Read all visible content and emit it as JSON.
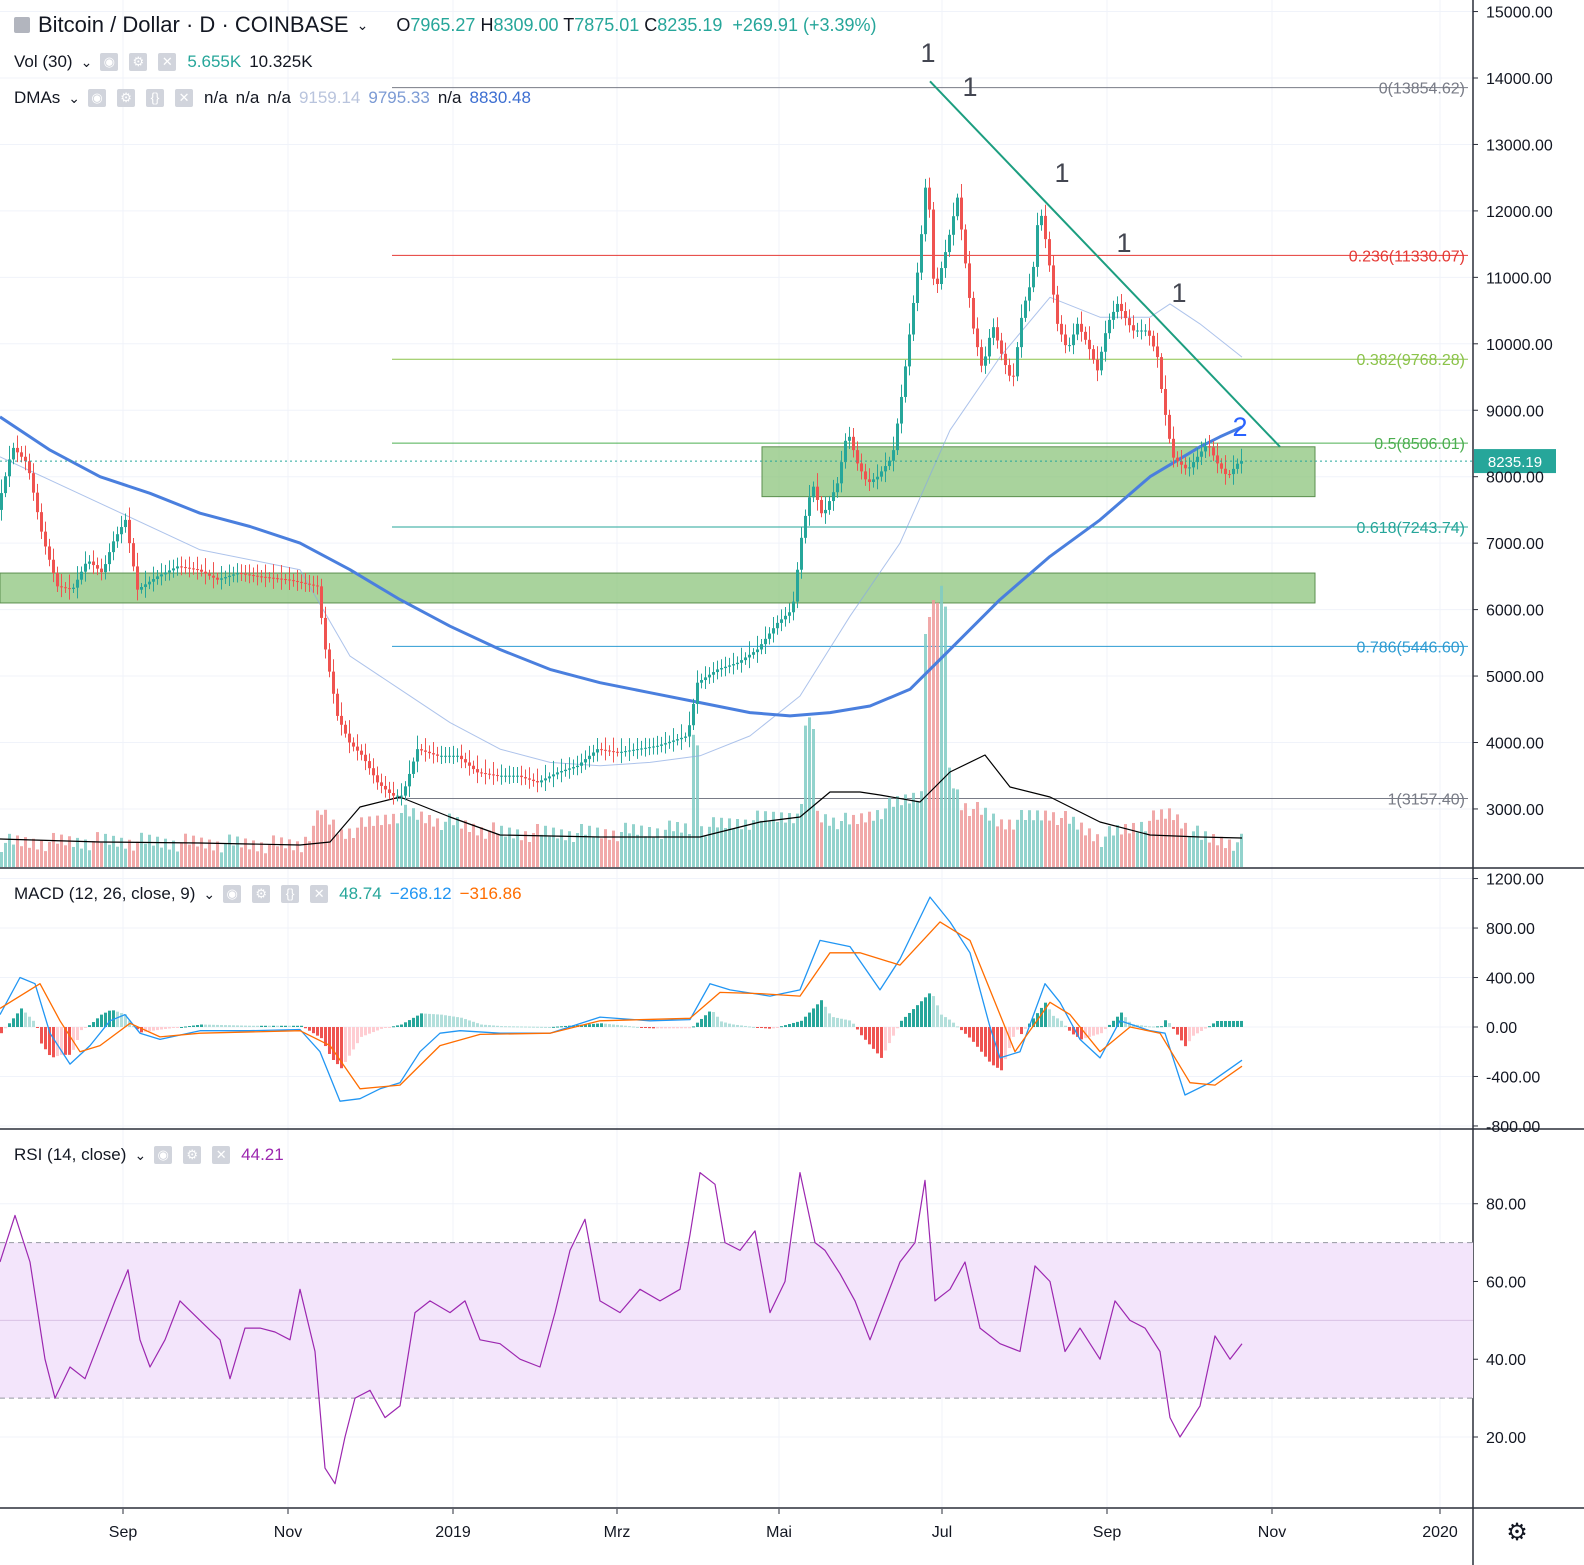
{
  "header": {
    "symbol": "Bitcoin / Dollar",
    "interval": "D",
    "exchange": "COINBASE",
    "open_label": "O",
    "open": "7965.27",
    "high_label": "H",
    "high": "8309.00",
    "low_label": "T",
    "low": "7875.01",
    "close_label": "C",
    "close": "8235.19",
    "change": "+269.91 (+3.39%)",
    "sep": "·"
  },
  "vol_legend": {
    "title": "Vol (30)",
    "v1": "5.655K",
    "v2": "10.325K"
  },
  "dma_legend": {
    "title": "DMAs",
    "values": [
      "n/a",
      "n/a",
      "n/a",
      "9159.14",
      "9795.33",
      "n/a",
      "8830.48"
    ]
  },
  "macd_legend": {
    "title": "MACD (12, 26, close, 9)",
    "hist": "48.74",
    "macd": "−268.12",
    "signal": "−316.86"
  },
  "rsi_legend": {
    "title": "RSI (14, close)",
    "value": "44.21"
  },
  "colors": {
    "up": "#26a69a",
    "down": "#ef5350",
    "ma200": "#4a7fde",
    "trend": "#1c9e80",
    "zone": "#8cc47c",
    "rsi": "#9c27b0",
    "rsi_band": "#f3e5fb",
    "macd": "#2196f3",
    "signal": "#ff6d00"
  },
  "chart_data": {
    "type": "candlestick",
    "price_axis": {
      "ticks": [
        "15000.00",
        "14000.00",
        "13000.00",
        "12000.00",
        "11000.00",
        "10000.00",
        "9000.00",
        "8000.00",
        "7000.00",
        "6000.00",
        "5000.00",
        "4000.00",
        "3000.00"
      ],
      "range": [
        2200,
        15000
      ]
    },
    "time_axis": {
      "labels": [
        "Sep",
        "Nov",
        "2019",
        "Mrz",
        "Mai",
        "Jul",
        "Sep",
        "Nov",
        "2020"
      ]
    },
    "last_price_label": "8235.19",
    "fibonacci": [
      {
        "label": "0(13854.62)",
        "value": 13854.62,
        "color": "#787b86"
      },
      {
        "label": "0.236(11330.07)",
        "value": 11330.07,
        "color": "#e53935"
      },
      {
        "label": "0.382(9768.28)",
        "value": 9768.28,
        "color": "#8bc34a"
      },
      {
        "label": "0.5(8506.01)",
        "value": 8506.01,
        "color": "#4caf50"
      },
      {
        "label": "0.618(7243.74)",
        "value": 7243.74,
        "color": "#26a69a"
      },
      {
        "label": "0.786(5446.60)",
        "value": 5446.6,
        "color": "#2d9bd2"
      },
      {
        "label": "1(3157.40)",
        "value": 3157.4,
        "color": "#787b86"
      }
    ],
    "zones": [
      {
        "low": 7700,
        "high": 8450
      },
      {
        "low": 6100,
        "high": 6550
      }
    ],
    "wave_labels": [
      "1",
      "1",
      "1",
      "1",
      "1",
      "2"
    ],
    "price_path": [
      [
        0,
        7500
      ],
      [
        15,
        8450
      ],
      [
        30,
        8200
      ],
      [
        45,
        7100
      ],
      [
        60,
        6350
      ],
      [
        75,
        6300
      ],
      [
        90,
        6750
      ],
      [
        105,
        6550
      ],
      [
        115,
        7000
      ],
      [
        128,
        7350
      ],
      [
        140,
        6300
      ],
      [
        160,
        6500
      ],
      [
        180,
        6650
      ],
      [
        200,
        6600
      ],
      [
        220,
        6450
      ],
      [
        240,
        6550
      ],
      [
        260,
        6500
      ],
      [
        290,
        6450
      ],
      [
        320,
        6350
      ],
      [
        328,
        5400
      ],
      [
        340,
        4400
      ],
      [
        352,
        4000
      ],
      [
        365,
        3800
      ],
      [
        380,
        3400
      ],
      [
        395,
        3200
      ],
      [
        405,
        3200
      ],
      [
        420,
        3900
      ],
      [
        440,
        3800
      ],
      [
        460,
        3800
      ],
      [
        480,
        3550
      ],
      [
        500,
        3500
      ],
      [
        520,
        3500
      ],
      [
        540,
        3400
      ],
      [
        560,
        3550
      ],
      [
        580,
        3650
      ],
      [
        600,
        3900
      ],
      [
        620,
        3850
      ],
      [
        640,
        3900
      ],
      [
        660,
        3950
      ],
      [
        690,
        4100
      ],
      [
        700,
        4900
      ],
      [
        720,
        5100
      ],
      [
        740,
        5200
      ],
      [
        760,
        5400
      ],
      [
        780,
        5800
      ],
      [
        795,
        6000
      ],
      [
        805,
        7200
      ],
      [
        815,
        7900
      ],
      [
        825,
        7400
      ],
      [
        840,
        7900
      ],
      [
        850,
        8700
      ],
      [
        860,
        8200
      ],
      [
        870,
        7900
      ],
      [
        880,
        8000
      ],
      [
        895,
        8300
      ],
      [
        905,
        9300
      ],
      [
        915,
        10500
      ],
      [
        922,
        11300
      ],
      [
        930,
        12700
      ],
      [
        935,
        11000
      ],
      [
        940,
        10900
      ],
      [
        950,
        11500
      ],
      [
        960,
        12200
      ],
      [
        965,
        11600
      ],
      [
        975,
        10300
      ],
      [
        985,
        9600
      ],
      [
        995,
        10300
      ],
      [
        1005,
        9800
      ],
      [
        1015,
        9400
      ],
      [
        1025,
        10500
      ],
      [
        1035,
        11000
      ],
      [
        1042,
        12100
      ],
      [
        1050,
        11400
      ],
      [
        1060,
        10300
      ],
      [
        1070,
        9900
      ],
      [
        1080,
        10300
      ],
      [
        1090,
        10000
      ],
      [
        1100,
        9600
      ],
      [
        1110,
        10300
      ],
      [
        1120,
        10600
      ],
      [
        1135,
        10200
      ],
      [
        1150,
        10200
      ],
      [
        1160,
        9800
      ],
      [
        1165,
        9200
      ],
      [
        1175,
        8300
      ],
      [
        1190,
        8100
      ],
      [
        1200,
        8300
      ],
      [
        1210,
        8500
      ],
      [
        1220,
        8200
      ],
      [
        1230,
        8000
      ],
      [
        1242,
        8235
      ]
    ],
    "volume_path": [
      [
        0,
        2400
      ],
      [
        100,
        2420
      ],
      [
        200,
        2400
      ],
      [
        300,
        2380
      ],
      [
        320,
        2700
      ],
      [
        340,
        2500
      ],
      [
        400,
        2700
      ],
      [
        500,
        2500
      ],
      [
        600,
        2500
      ],
      [
        700,
        2550
      ],
      [
        800,
        2700
      ],
      [
        850,
        2600
      ],
      [
        920,
        2900
      ],
      [
        940,
        3300
      ],
      [
        960,
        2800
      ],
      [
        1000,
        2600
      ],
      [
        1050,
        2700
      ],
      [
        1100,
        2450
      ],
      [
        1170,
        2700
      ],
      [
        1200,
        2450
      ],
      [
        1242,
        2400
      ]
    ],
    "volume_ma_path": [
      [
        0,
        2480
      ],
      [
        100,
        2450
      ],
      [
        200,
        2440
      ],
      [
        300,
        2420
      ],
      [
        330,
        2450
      ],
      [
        360,
        2800
      ],
      [
        400,
        2900
      ],
      [
        450,
        2700
      ],
      [
        500,
        2520
      ],
      [
        600,
        2500
      ],
      [
        700,
        2500
      ],
      [
        760,
        2650
      ],
      [
        800,
        2700
      ],
      [
        830,
        2950
      ],
      [
        860,
        2950
      ],
      [
        880,
        2920
      ],
      [
        920,
        2850
      ],
      [
        950,
        3150
      ],
      [
        985,
        3320
      ],
      [
        1010,
        3000
      ],
      [
        1050,
        2900
      ],
      [
        1100,
        2650
      ],
      [
        1150,
        2520
      ],
      [
        1200,
        2500
      ],
      [
        1242,
        2490
      ]
    ],
    "ma200_path": [
      [
        0,
        8900
      ],
      [
        50,
        8400
      ],
      [
        100,
        8000
      ],
      [
        150,
        7750
      ],
      [
        200,
        7450
      ],
      [
        250,
        7250
      ],
      [
        300,
        7000
      ],
      [
        350,
        6600
      ],
      [
        400,
        6150
      ],
      [
        450,
        5750
      ],
      [
        500,
        5400
      ],
      [
        550,
        5100
      ],
      [
        600,
        4900
      ],
      [
        650,
        4750
      ],
      [
        700,
        4600
      ],
      [
        750,
        4450
      ],
      [
        790,
        4400
      ],
      [
        830,
        4450
      ],
      [
        870,
        4550
      ],
      [
        910,
        4800
      ],
      [
        950,
        5400
      ],
      [
        1000,
        6150
      ],
      [
        1050,
        6800
      ],
      [
        1100,
        7350
      ],
      [
        1150,
        8000
      ],
      [
        1200,
        8450
      ],
      [
        1220,
        8600
      ],
      [
        1242,
        8750
      ]
    ],
    "ma_light_path": [
      [
        0,
        8300
      ],
      [
        100,
        7600
      ],
      [
        200,
        6900
      ],
      [
        300,
        6600
      ],
      [
        350,
        5300
      ],
      [
        400,
        4800
      ],
      [
        450,
        4300
      ],
      [
        500,
        3900
      ],
      [
        550,
        3700
      ],
      [
        600,
        3650
      ],
      [
        650,
        3700
      ],
      [
        700,
        3800
      ],
      [
        750,
        4100
      ],
      [
        800,
        4700
      ],
      [
        850,
        5900
      ],
      [
        900,
        7000
      ],
      [
        950,
        8700
      ],
      [
        1000,
        9800
      ],
      [
        1050,
        10700
      ],
      [
        1100,
        10400
      ],
      [
        1150,
        10400
      ],
      [
        1170,
        10600
      ],
      [
        1200,
        10300
      ],
      [
        1242,
        9800
      ]
    ],
    "trendline": {
      "start": [
        930,
        13950
      ],
      "end": [
        1280,
        8450
      ]
    },
    "macd_axis": {
      "ticks": [
        "1200.00",
        "800.00",
        "400.00",
        "0.00",
        "-400.00",
        "-800.00"
      ],
      "range": [
        -800,
        1200
      ]
    },
    "macd_line": [
      [
        0,
        100
      ],
      [
        20,
        400
      ],
      [
        35,
        350
      ],
      [
        50,
        -50
      ],
      [
        70,
        -300
      ],
      [
        90,
        -150
      ],
      [
        110,
        50
      ],
      [
        125,
        100
      ],
      [
        140,
        -50
      ],
      [
        160,
        -100
      ],
      [
        200,
        -30
      ],
      [
        250,
        -30
      ],
      [
        300,
        -20
      ],
      [
        320,
        -200
      ],
      [
        340,
        -600
      ],
      [
        360,
        -580
      ],
      [
        380,
        -500
      ],
      [
        400,
        -450
      ],
      [
        420,
        -200
      ],
      [
        440,
        -50
      ],
      [
        460,
        -30
      ],
      [
        500,
        -50
      ],
      [
        550,
        -50
      ],
      [
        600,
        80
      ],
      [
        650,
        50
      ],
      [
        690,
        60
      ],
      [
        710,
        350
      ],
      [
        730,
        300
      ],
      [
        770,
        250
      ],
      [
        800,
        300
      ],
      [
        820,
        700
      ],
      [
        850,
        650
      ],
      [
        880,
        300
      ],
      [
        900,
        550
      ],
      [
        930,
        1050
      ],
      [
        950,
        850
      ],
      [
        970,
        600
      ],
      [
        990,
        0
      ],
      [
        1000,
        -250
      ],
      [
        1020,
        -200
      ],
      [
        1045,
        350
      ],
      [
        1060,
        200
      ],
      [
        1080,
        -100
      ],
      [
        1100,
        -250
      ],
      [
        1120,
        50
      ],
      [
        1150,
        -30
      ],
      [
        1165,
        -50
      ],
      [
        1185,
        -550
      ],
      [
        1210,
        -450
      ],
      [
        1242,
        -268
      ]
    ],
    "macd_signal": [
      [
        0,
        150
      ],
      [
        40,
        350
      ],
      [
        60,
        50
      ],
      [
        80,
        -200
      ],
      [
        100,
        -150
      ],
      [
        130,
        30
      ],
      [
        160,
        -80
      ],
      [
        200,
        -50
      ],
      [
        300,
        -30
      ],
      [
        330,
        -150
      ],
      [
        360,
        -500
      ],
      [
        400,
        -470
      ],
      [
        440,
        -150
      ],
      [
        480,
        -60
      ],
      [
        550,
        -50
      ],
      [
        600,
        50
      ],
      [
        690,
        70
      ],
      [
        720,
        280
      ],
      [
        760,
        270
      ],
      [
        800,
        250
      ],
      [
        830,
        600
      ],
      [
        860,
        600
      ],
      [
        900,
        500
      ],
      [
        940,
        850
      ],
      [
        970,
        700
      ],
      [
        995,
        200
      ],
      [
        1015,
        -200
      ],
      [
        1050,
        200
      ],
      [
        1070,
        100
      ],
      [
        1100,
        -200
      ],
      [
        1130,
        0
      ],
      [
        1160,
        -50
      ],
      [
        1190,
        -450
      ],
      [
        1215,
        -470
      ],
      [
        1242,
        -317
      ]
    ],
    "rsi_axis": {
      "ticks": [
        "80.00",
        "60.00",
        "40.00",
        "20.00"
      ],
      "range": [
        0,
        100
      ],
      "band": [
        30,
        70
      ]
    },
    "rsi_line": [
      [
        0,
        65
      ],
      [
        15,
        77
      ],
      [
        30,
        65
      ],
      [
        45,
        40
      ],
      [
        55,
        30
      ],
      [
        70,
        38
      ],
      [
        85,
        35
      ],
      [
        100,
        45
      ],
      [
        115,
        55
      ],
      [
        128,
        63
      ],
      [
        140,
        45
      ],
      [
        150,
        38
      ],
      [
        165,
        45
      ],
      [
        180,
        55
      ],
      [
        200,
        50
      ],
      [
        220,
        45
      ],
      [
        230,
        35
      ],
      [
        245,
        48
      ],
      [
        260,
        48
      ],
      [
        275,
        47
      ],
      [
        290,
        45
      ],
      [
        300,
        58
      ],
      [
        315,
        42
      ],
      [
        325,
        12
      ],
      [
        335,
        8
      ],
      [
        345,
        20
      ],
      [
        355,
        30
      ],
      [
        370,
        32
      ],
      [
        385,
        25
      ],
      [
        400,
        28
      ],
      [
        415,
        52
      ],
      [
        430,
        55
      ],
      [
        450,
        52
      ],
      [
        465,
        55
      ],
      [
        480,
        45
      ],
      [
        500,
        44
      ],
      [
        520,
        40
      ],
      [
        540,
        38
      ],
      [
        555,
        52
      ],
      [
        570,
        68
      ],
      [
        585,
        76
      ],
      [
        600,
        55
      ],
      [
        620,
        52
      ],
      [
        640,
        58
      ],
      [
        660,
        55
      ],
      [
        680,
        58
      ],
      [
        690,
        72
      ],
      [
        700,
        88
      ],
      [
        715,
        85
      ],
      [
        725,
        70
      ],
      [
        740,
        68
      ],
      [
        755,
        73
      ],
      [
        770,
        52
      ],
      [
        785,
        60
      ],
      [
        800,
        88
      ],
      [
        815,
        70
      ],
      [
        825,
        68
      ],
      [
        840,
        62
      ],
      [
        855,
        55
      ],
      [
        870,
        45
      ],
      [
        885,
        55
      ],
      [
        900,
        65
      ],
      [
        915,
        70
      ],
      [
        925,
        86
      ],
      [
        935,
        55
      ],
      [
        950,
        58
      ],
      [
        965,
        65
      ],
      [
        980,
        48
      ],
      [
        1000,
        44
      ],
      [
        1020,
        42
      ],
      [
        1035,
        64
      ],
      [
        1050,
        60
      ],
      [
        1065,
        42
      ],
      [
        1080,
        48
      ],
      [
        1100,
        40
      ],
      [
        1115,
        55
      ],
      [
        1130,
        50
      ],
      [
        1145,
        48
      ],
      [
        1160,
        42
      ],
      [
        1170,
        25
      ],
      [
        1180,
        20
      ],
      [
        1200,
        28
      ],
      [
        1215,
        46
      ],
      [
        1230,
        40
      ],
      [
        1242,
        44
      ]
    ],
    "x_units": "day index"
  }
}
